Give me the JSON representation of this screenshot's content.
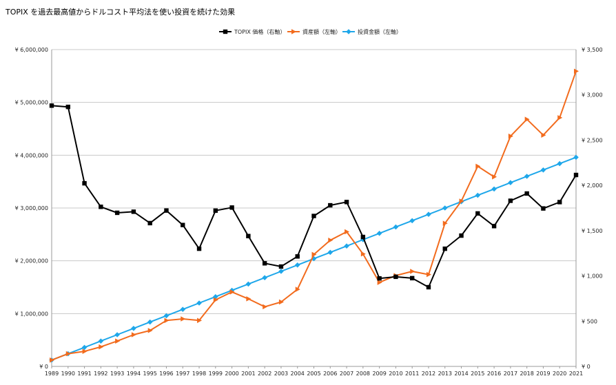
{
  "chart_data": {
    "type": "line",
    "title": "TOPIX を過去最高値からドルコスト平均法を使い投資を続けた効果",
    "x": [
      "1989",
      "1990",
      "1991",
      "1992",
      "1993",
      "1994",
      "1995",
      "1996",
      "1997",
      "1998",
      "1999",
      "2000",
      "2001",
      "2002",
      "2003",
      "2004",
      "2005",
      "2006",
      "2007",
      "2008",
      "2009",
      "2010",
      "2011",
      "2012",
      "2013",
      "2014",
      "2015",
      "2016",
      "2017",
      "2018",
      "2019",
      "2020",
      "2021"
    ],
    "left_axis": {
      "ticks": [
        0,
        1000000,
        2000000,
        3000000,
        4000000,
        5000000,
        6000000
      ],
      "tick_labels": [
        "¥ 0",
        "¥ 1,000,000",
        "¥ 2,000,000",
        "¥ 3,000,000",
        "¥ 4,000,000",
        "¥ 5,000,000",
        "¥ 6,000,000"
      ],
      "ylim": [
        0,
        6000000
      ]
    },
    "right_axis": {
      "ticks": [
        0,
        500,
        1000,
        1500,
        2000,
        2500,
        3000,
        3500
      ],
      "tick_labels": [
        "¥ 0",
        "¥ 500",
        "¥ 1,000",
        "¥ 1,500",
        "¥ 2,000",
        "¥ 2,500",
        "¥ 3,000",
        "¥ 3,500"
      ],
      "ylim": [
        0,
        3500
      ]
    },
    "grid": true,
    "legend_position": "top-center",
    "series": [
      {
        "name": "TOPIX 価格（右軸）",
        "axis": "right",
        "color": "#000000",
        "marker": "square",
        "values": [
          2881,
          2867,
          2023,
          1763,
          1697,
          1709,
          1583,
          1722,
          1562,
          1300,
          1721,
          1755,
          1440,
          1139,
          1103,
          1215,
          1662,
          1780,
          1816,
          1430,
          972,
          990,
          975,
          875,
          1300,
          1445,
          1690,
          1550,
          1830,
          1910,
          1745,
          1815,
          2115
        ]
      },
      {
        "name": "資産額（左軸）",
        "axis": "left",
        "color": "#f26b1d",
        "marker": "triangle",
        "values": [
          120000,
          240000,
          285000,
          370000,
          480000,
          600000,
          680000,
          870000,
          900000,
          870000,
          1260000,
          1410000,
          1280000,
          1130000,
          1220000,
          1460000,
          2120000,
          2390000,
          2550000,
          2130000,
          1590000,
          1720000,
          1800000,
          1740000,
          2710000,
          3130000,
          3790000,
          3590000,
          4360000,
          4680000,
          4380000,
          4710000,
          5590000
        ]
      },
      {
        "name": "投資金額（左軸）",
        "axis": "left",
        "color": "#1ea7ea",
        "marker": "diamond",
        "values": [
          120000,
          240000,
          360000,
          480000,
          600000,
          720000,
          840000,
          960000,
          1080000,
          1200000,
          1320000,
          1440000,
          1560000,
          1680000,
          1800000,
          1920000,
          2040000,
          2160000,
          2280000,
          2400000,
          2520000,
          2640000,
          2760000,
          2880000,
          3000000,
          3120000,
          3240000,
          3360000,
          3480000,
          3600000,
          3720000,
          3840000,
          3960000
        ]
      }
    ]
  }
}
